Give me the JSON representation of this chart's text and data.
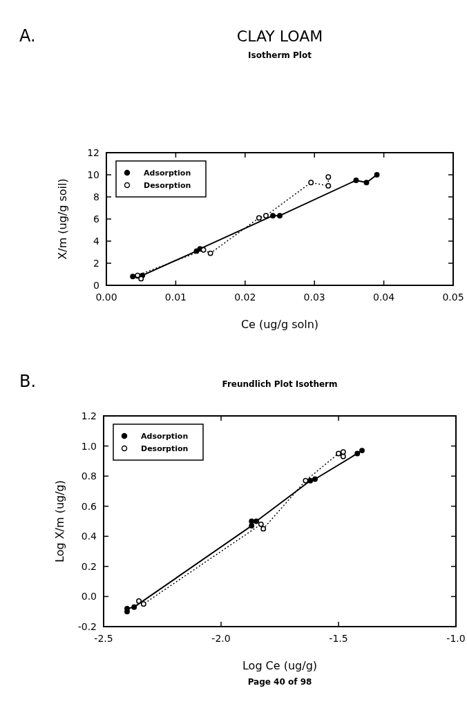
{
  "chart_data": [
    {
      "type": "line",
      "title": "Isotherm Plot",
      "xlabel": "Ce (ug/g soln)",
      "ylabel": "X/m (ug/g soil)",
      "annotations": [
        "A.",
        "CLAY LOAM"
      ],
      "xlim": [
        0,
        0.05
      ],
      "xticks": [
        {
          "value": 0,
          "label": "0.00"
        },
        {
          "value": 0.01,
          "label": "0.01"
        },
        {
          "value": 0.02,
          "label": "0.02"
        },
        {
          "value": 0.03,
          "label": "0.03"
        },
        {
          "value": 0.04,
          "label": "0.04"
        },
        {
          "value": 0.05,
          "label": "0.05"
        }
      ],
      "ylim": [
        0,
        12
      ],
      "yticks": [
        0,
        2,
        4,
        6,
        8,
        10,
        12
      ],
      "grid": false,
      "legend": "top left",
      "marker": "circle",
      "series": [
        {
          "name": "Adsorption",
          "color": "#000000",
          "line_style": "solid",
          "x": [
            0.0038,
            0.0045,
            0.0052,
            0.013,
            0.0135,
            0.024,
            0.025,
            0.036,
            0.0375,
            0.039
          ],
          "values": [
            0.8,
            0.85,
            0.9,
            3.1,
            3.3,
            6.3,
            6.3,
            9.5,
            9.3,
            10.0
          ]
        },
        {
          "name": "Desorption",
          "color": "#000000",
          "line_style": "dotted",
          "x": [
            0.005,
            0.0045,
            0.014,
            0.015,
            0.022,
            0.023,
            0.0295,
            0.032,
            0.032
          ],
          "values": [
            0.6,
            0.9,
            3.2,
            2.9,
            6.1,
            6.3,
            9.3,
            9.0,
            9.8
          ]
        }
      ]
    },
    {
      "type": "line",
      "title": "Freundlich Plot Isotherm",
      "xlabel": "Log Ce (ug/g)",
      "ylabel": "Log X/m (ug/g)",
      "annotations": [
        "B.",
        "Page 40 of 98"
      ],
      "xlim": [
        -2.5,
        -1.0
      ],
      "xticks": [
        {
          "value": -2.5,
          "label": "-2.5"
        },
        {
          "value": -2.0,
          "label": "-2.0"
        },
        {
          "value": -1.5,
          "label": "-1.5"
        },
        {
          "value": -1.0,
          "label": "-1.0"
        }
      ],
      "ylim": [
        -0.2,
        1.2
      ],
      "yticks": [
        {
          "value": -0.2,
          "label": "-0.2"
        },
        {
          "value": 0,
          "label": "0.0"
        },
        {
          "value": 0.2,
          "label": "0.2"
        },
        {
          "value": 0.4,
          "label": "0.4"
        },
        {
          "value": 0.6,
          "label": "0.6"
        },
        {
          "value": 0.8,
          "label": "0.8"
        },
        {
          "value": 1.0,
          "label": "1.0"
        },
        {
          "value": 1.2,
          "label": "1.2"
        }
      ],
      "grid": false,
      "legend": "top left",
      "marker": "circle",
      "series": [
        {
          "name": "Adsorption",
          "color": "#000000",
          "line_style": "solid",
          "x": [
            -2.4,
            -2.4,
            -2.37,
            -1.87,
            -1.87,
            -1.85,
            -1.62,
            -1.6,
            -1.42,
            -1.4
          ],
          "values": [
            -0.1,
            -0.08,
            -0.07,
            0.47,
            0.5,
            0.5,
            0.77,
            0.78,
            0.95,
            0.97
          ]
        },
        {
          "name": "Desorption",
          "color": "#000000",
          "line_style": "dotted",
          "x": [
            -2.35,
            -2.33,
            -1.83,
            -1.82,
            -1.64,
            -1.5,
            -1.48,
            -1.48
          ],
          "values": [
            -0.03,
            -0.05,
            0.48,
            0.45,
            0.77,
            0.95,
            0.93,
            0.96
          ]
        }
      ]
    }
  ]
}
